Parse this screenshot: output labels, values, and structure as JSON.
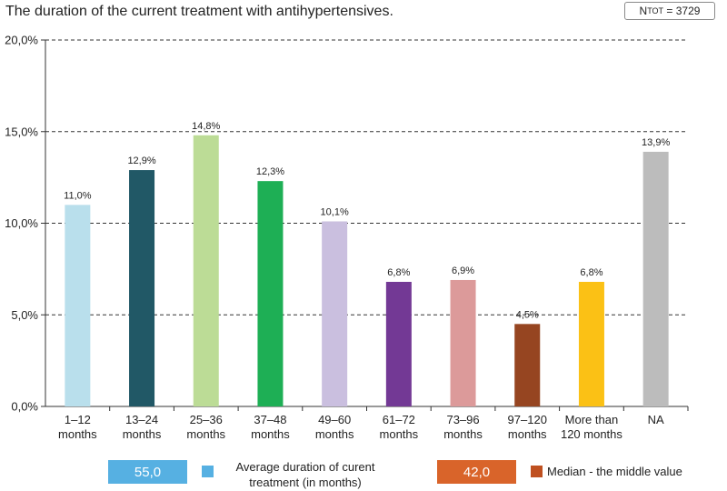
{
  "chart_data": {
    "type": "bar",
    "title": "The duration of the current treatment with antihypertensives.",
    "n_total": {
      "prefix": "N",
      "subscript": "TOT",
      "value": "= 3729"
    },
    "categories": [
      [
        "1–12",
        "months"
      ],
      [
        "13–24",
        "months"
      ],
      [
        "25–36",
        "months"
      ],
      [
        "37–48",
        "months"
      ],
      [
        "49–60",
        "months"
      ],
      [
        "61–72",
        "months"
      ],
      [
        "73–96",
        "months"
      ],
      [
        "97–120",
        "months"
      ],
      [
        "More than",
        "120 months"
      ],
      [
        "NA"
      ]
    ],
    "values": [
      11.0,
      12.9,
      14.8,
      12.3,
      10.1,
      6.8,
      6.9,
      4.5,
      6.8,
      13.9
    ],
    "value_labels": [
      "11,0%",
      "12,9%",
      "14,8%",
      "12,3%",
      "10,1%",
      "6,8%",
      "6,9%",
      "4,5%",
      "6,8%",
      "13,9%"
    ],
    "bar_colors": [
      "#b9dfec",
      "#215866",
      "#bcdc96",
      "#1eaf55",
      "#cabfdf",
      "#733995",
      "#dc9a9a",
      "#964521",
      "#fbc115",
      "#bcbcbc"
    ],
    "yticks": [
      0,
      5,
      10,
      15,
      20
    ],
    "ytick_labels": [
      "0,0%",
      "5,0%",
      "10,0%",
      "15,0%",
      "20,0%"
    ],
    "ylim": [
      0,
      20
    ],
    "xlabel": "",
    "ylabel": "",
    "grid": "dashed horizontal",
    "legend": [
      {
        "value": "55,0",
        "label": "Average duration of curent treatment (in months)",
        "label_lines": [
          "Average duration of curent",
          "treatment (in months)"
        ],
        "box_color": "#56b0e2",
        "swatch_color": "#56b0e2"
      },
      {
        "value": "42,0",
        "label": "Median - the middle value",
        "label_lines": [
          "Median - the middle value"
        ],
        "box_color": "#d9642a",
        "swatch_color": "#bf5020"
      }
    ]
  }
}
